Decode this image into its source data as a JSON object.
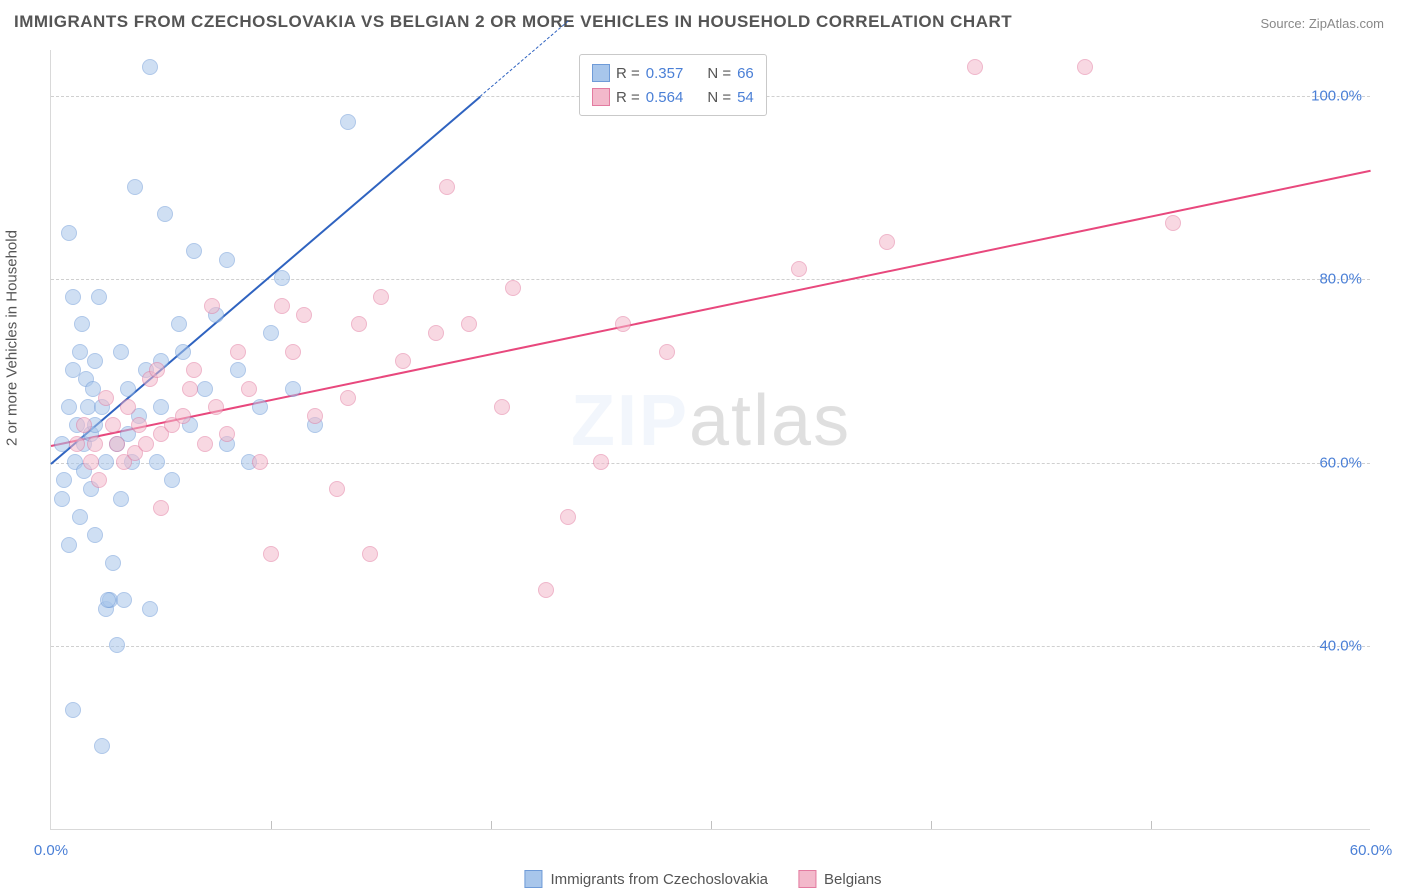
{
  "title": "IMMIGRANTS FROM CZECHOSLOVAKIA VS BELGIAN 2 OR MORE VEHICLES IN HOUSEHOLD CORRELATION CHART",
  "source": "Source: ZipAtlas.com",
  "ylabel": "2 or more Vehicles in Household",
  "watermark": {
    "a": "ZIP",
    "b": "atlas"
  },
  "chart": {
    "type": "scatter",
    "background_color": "#ffffff",
    "grid_color": "#d0d0d0",
    "axis_color": "#d9d9d9",
    "label_color": "#4a7fd6",
    "title_color": "#555555",
    "title_fontsize": 17,
    "label_fontsize": 15,
    "tick_fontsize": 15,
    "xlim": [
      0,
      60
    ],
    "ylim": [
      20,
      105
    ],
    "yticks": [
      40,
      60,
      80,
      100
    ],
    "ytick_labels": [
      "40.0%",
      "60.0%",
      "80.0%",
      "100.0%"
    ],
    "xticks": [
      0,
      60
    ],
    "xtick_labels": [
      "0.0%",
      "60.0%"
    ],
    "xtick_marks": [
      10,
      20,
      30,
      40,
      50
    ],
    "marker_radius": 8,
    "marker_border_width": 1.5,
    "series": [
      {
        "name": "Immigrants from Czechoslovakia",
        "fill": "#a8c6eb",
        "fill_opacity": 0.55,
        "stroke": "#6f9bd8",
        "R": "0.357",
        "N": "66",
        "trend": {
          "x1": 0,
          "y1": 60,
          "x2": 19.5,
          "y2": 100,
          "color": "#2f63c0",
          "width": 2.2,
          "dash_tail": true
        },
        "points": [
          [
            0.5,
            62
          ],
          [
            0.5,
            56
          ],
          [
            0.6,
            58
          ],
          [
            0.8,
            66
          ],
          [
            0.8,
            85
          ],
          [
            1.0,
            70
          ],
          [
            1.0,
            78
          ],
          [
            1.1,
            60
          ],
          [
            1.2,
            64
          ],
          [
            1.3,
            72
          ],
          [
            1.3,
            54
          ],
          [
            1.4,
            75
          ],
          [
            1.5,
            59
          ],
          [
            1.5,
            62
          ],
          [
            1.6,
            69
          ],
          [
            1.7,
            66
          ],
          [
            1.8,
            57
          ],
          [
            1.8,
            63
          ],
          [
            1.9,
            68
          ],
          [
            2.0,
            64
          ],
          [
            2.0,
            71
          ],
          [
            2.0,
            52
          ],
          [
            2.2,
            78
          ],
          [
            2.3,
            66
          ],
          [
            2.5,
            60
          ],
          [
            2.5,
            44
          ],
          [
            2.7,
            45
          ],
          [
            2.8,
            49
          ],
          [
            3.0,
            62
          ],
          [
            3.0,
            40
          ],
          [
            3.2,
            72
          ],
          [
            3.2,
            56
          ],
          [
            3.5,
            63
          ],
          [
            3.5,
            68
          ],
          [
            3.7,
            60
          ],
          [
            3.8,
            90
          ],
          [
            4.0,
            65
          ],
          [
            4.3,
            70
          ],
          [
            4.5,
            103
          ],
          [
            4.5,
            44
          ],
          [
            4.8,
            60
          ],
          [
            5.0,
            66
          ],
          [
            5.0,
            71
          ],
          [
            5.2,
            87
          ],
          [
            5.5,
            58
          ],
          [
            5.8,
            75
          ],
          [
            6.0,
            72
          ],
          [
            6.3,
            64
          ],
          [
            6.5,
            83
          ],
          [
            7.0,
            68
          ],
          [
            7.5,
            76
          ],
          [
            8.0,
            62
          ],
          [
            8.0,
            82
          ],
          [
            8.5,
            70
          ],
          [
            9.0,
            60
          ],
          [
            9.5,
            66
          ],
          [
            10.0,
            74
          ],
          [
            10.5,
            80
          ],
          [
            11.0,
            68
          ],
          [
            12.0,
            64
          ],
          [
            13.5,
            97
          ],
          [
            1.0,
            33
          ],
          [
            2.3,
            29
          ],
          [
            2.6,
            45
          ],
          [
            3.3,
            45
          ],
          [
            0.8,
            51
          ]
        ]
      },
      {
        "name": "Belgians",
        "fill": "#f3b9cb",
        "fill_opacity": 0.55,
        "stroke": "#e37ba0",
        "R": "0.564",
        "N": "54",
        "trend": {
          "x1": 0,
          "y1": 62,
          "x2": 60,
          "y2": 92,
          "color": "#e8487d",
          "width": 2.2,
          "dash_tail": false
        },
        "points": [
          [
            1.2,
            62
          ],
          [
            1.5,
            64
          ],
          [
            1.8,
            60
          ],
          [
            2.0,
            62
          ],
          [
            2.2,
            58
          ],
          [
            2.5,
            67
          ],
          [
            2.8,
            64
          ],
          [
            3.0,
            62
          ],
          [
            3.3,
            60
          ],
          [
            3.5,
            66
          ],
          [
            3.8,
            61
          ],
          [
            4.0,
            64
          ],
          [
            4.3,
            62
          ],
          [
            4.5,
            69
          ],
          [
            4.8,
            70
          ],
          [
            5.0,
            63
          ],
          [
            5.0,
            55
          ],
          [
            5.5,
            64
          ],
          [
            6.0,
            65
          ],
          [
            6.3,
            68
          ],
          [
            6.5,
            70
          ],
          [
            7.0,
            62
          ],
          [
            7.3,
            77
          ],
          [
            7.5,
            66
          ],
          [
            8.0,
            63
          ],
          [
            8.5,
            72
          ],
          [
            9.0,
            68
          ],
          [
            9.5,
            60
          ],
          [
            10.0,
            50
          ],
          [
            10.5,
            77
          ],
          [
            11.0,
            72
          ],
          [
            11.5,
            76
          ],
          [
            12.0,
            65
          ],
          [
            13.0,
            57
          ],
          [
            13.5,
            67
          ],
          [
            14.0,
            75
          ],
          [
            14.5,
            50
          ],
          [
            15.0,
            78
          ],
          [
            16.0,
            71
          ],
          [
            17.5,
            74
          ],
          [
            18.0,
            90
          ],
          [
            19.0,
            75
          ],
          [
            20.5,
            66
          ],
          [
            21.0,
            79
          ],
          [
            22.5,
            46
          ],
          [
            23.5,
            54
          ],
          [
            25.0,
            60
          ],
          [
            26.0,
            75
          ],
          [
            28.0,
            72
          ],
          [
            34.0,
            81
          ],
          [
            38.0,
            84
          ],
          [
            42.0,
            103
          ],
          [
            47.0,
            103
          ],
          [
            51.0,
            86
          ]
        ]
      }
    ]
  },
  "legend_box": {
    "rows": [
      {
        "swatch_fill": "#a8c6eb",
        "swatch_stroke": "#6f9bd8",
        "r_label": "R =",
        "r_val": "0.357",
        "n_label": "N =",
        "n_val": "66"
      },
      {
        "swatch_fill": "#f3b9cb",
        "swatch_stroke": "#e37ba0",
        "r_label": "R =",
        "r_val": "0.564",
        "n_label": "N =",
        "n_val": "54"
      }
    ]
  },
  "bottom_legend": [
    {
      "swatch_fill": "#a8c6eb",
      "swatch_stroke": "#6f9bd8",
      "label": "Immigrants from Czechoslovakia"
    },
    {
      "swatch_fill": "#f3b9cb",
      "swatch_stroke": "#e37ba0",
      "label": "Belgians"
    }
  ]
}
